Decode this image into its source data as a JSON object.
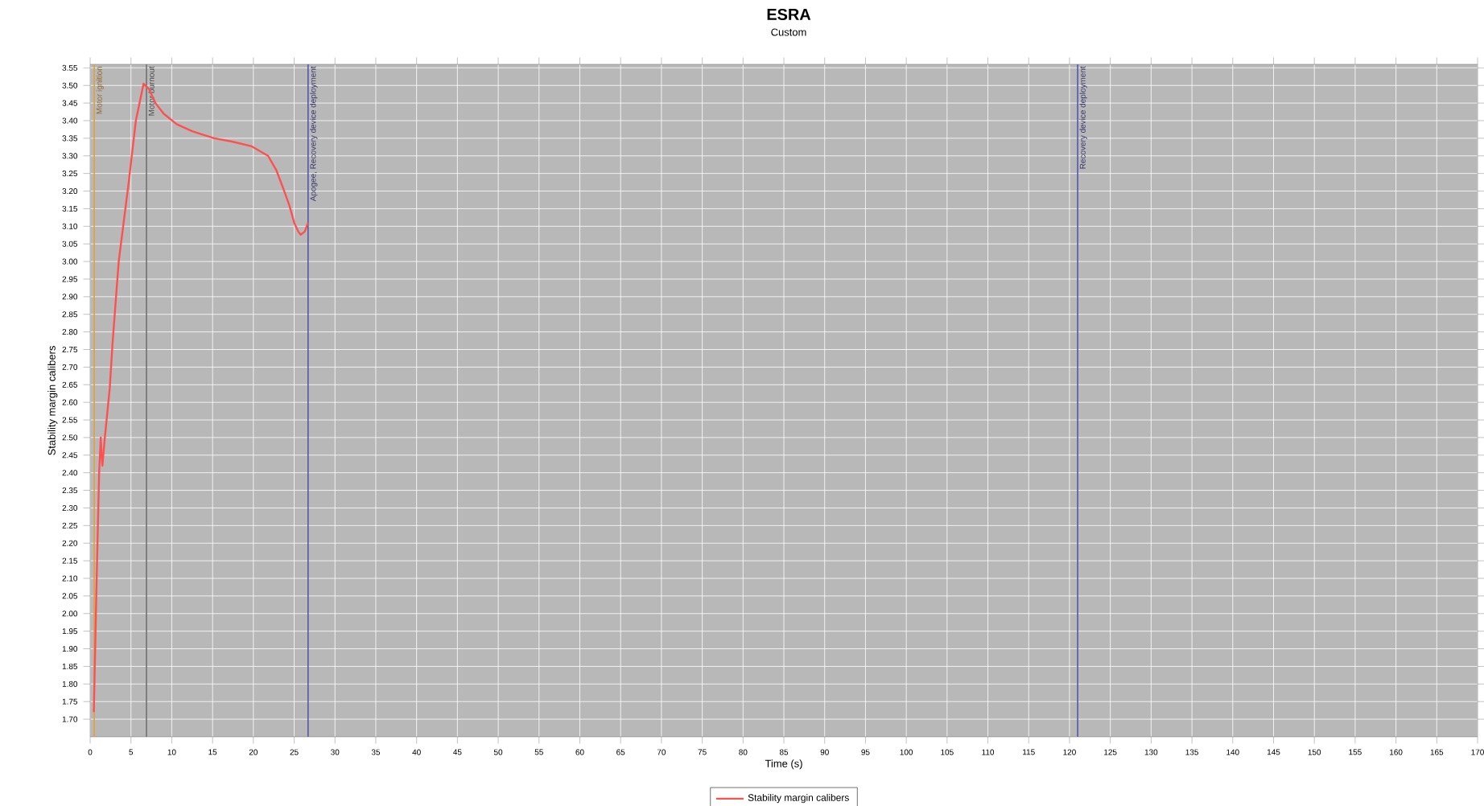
{
  "chart_data": {
    "type": "line",
    "title": "ESRA",
    "subtitle": "Custom",
    "xlabel": "Time (s)",
    "ylabel": "Stability margin calibers",
    "series": [
      {
        "name": "Stability margin calibers",
        "color": "#ff5050",
        "x": [
          0.45,
          0.8,
          1.1,
          1.3,
          1.4,
          1.5,
          1.8,
          2.4,
          2.75,
          3.5,
          4.7,
          5.6,
          6.55,
          7.2,
          8.0,
          9.0,
          10.6,
          12.5,
          15.2,
          17.5,
          19.8,
          21.8,
          22.8,
          23.7,
          24.4,
          25.0,
          25.5,
          25.8,
          26.3,
          26.7
        ],
        "values": [
          1.72,
          2.1,
          2.4,
          2.5,
          2.45,
          2.42,
          2.5,
          2.64,
          2.77,
          3.0,
          3.22,
          3.4,
          3.505,
          3.49,
          3.45,
          3.42,
          3.39,
          3.37,
          3.35,
          3.34,
          3.327,
          3.3,
          3.26,
          3.205,
          3.16,
          3.11,
          3.085,
          3.076,
          3.085,
          3.11
        ]
      }
    ],
    "xlim": [
      0,
      170
    ],
    "xticks": [
      0,
      5,
      10,
      15,
      20,
      25,
      30,
      35,
      40,
      45,
      50,
      55,
      60,
      65,
      70,
      75,
      80,
      85,
      90,
      95,
      100,
      105,
      110,
      115,
      120,
      125,
      130,
      135,
      140,
      145,
      150,
      155,
      160,
      165,
      170
    ],
    "ylim": [
      1.65,
      3.56
    ],
    "yticks": [
      {
        "value": 1.7,
        "label": "1.70"
      },
      1.75,
      {
        "value": 1.8,
        "label": "1.80"
      },
      1.85,
      {
        "value": 1.9,
        "label": "1.90"
      },
      1.95,
      {
        "value": 2.0,
        "label": "2.00"
      },
      2.05,
      {
        "value": 2.1,
        "label": "2.10"
      },
      2.15,
      {
        "value": 2.2,
        "label": "2.20"
      },
      2.25,
      {
        "value": 2.3,
        "label": "2.30"
      },
      2.35,
      {
        "value": 2.4,
        "label": "2.40"
      },
      2.45,
      {
        "value": 2.5,
        "label": "2.50"
      },
      2.55,
      {
        "value": 2.6,
        "label": "2.60"
      },
      2.65,
      {
        "value": 2.7,
        "label": "2.70"
      },
      2.75,
      {
        "value": 2.8,
        "label": "2.80"
      },
      2.85,
      {
        "value": 2.9,
        "label": "2.90"
      },
      2.95,
      {
        "value": 3.0,
        "label": "3.00"
      },
      3.05,
      {
        "value": 3.1,
        "label": "3.10"
      },
      3.15,
      {
        "value": 3.2,
        "label": "3.20"
      },
      3.25,
      {
        "value": 3.3,
        "label": "3.30"
      },
      3.35,
      {
        "value": 3.4,
        "label": "3.40"
      },
      3.45,
      {
        "value": 3.5,
        "label": "3.50"
      },
      3.55
    ],
    "ref_lines": [
      {
        "axis": "x",
        "value": 0.5,
        "label": "Motor ignition",
        "color": "#e0a040"
      },
      {
        "axis": "x",
        "value": 6.9,
        "label": "Motor burnout",
        "color": "#707070"
      },
      {
        "axis": "x",
        "value": 26.7,
        "label": "Apogee, Recovery device deployment",
        "color": "#5555aa"
      },
      {
        "axis": "x",
        "value": 121,
        "label": "Recovery device deployment",
        "color": "#5555aa"
      }
    ],
    "grid": true,
    "legend": "bottom",
    "marker": "none",
    "line_style": "solid"
  }
}
